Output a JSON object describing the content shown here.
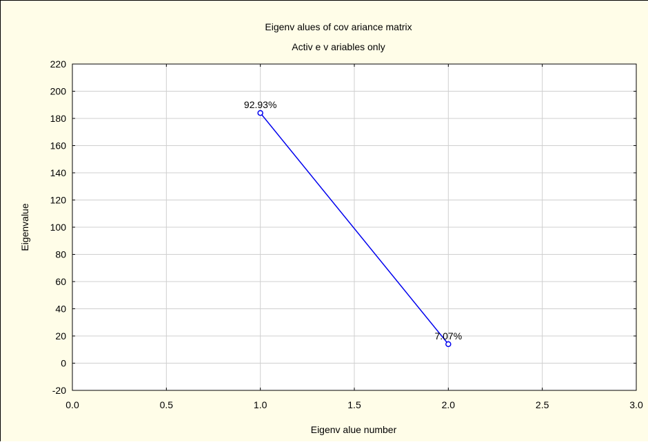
{
  "chart_data": {
    "type": "line",
    "title": "Eigenv alues of cov ariance matrix",
    "subtitle": "Activ e v ariables only",
    "xlabel": "Eigenv alue number",
    "ylabel": "Eigenvalue",
    "xlim": [
      0.0,
      3.0
    ],
    "ylim": [
      -20,
      220
    ],
    "xticks": [
      0.0,
      0.5,
      1.0,
      1.5,
      2.0,
      2.5,
      3.0
    ],
    "xtick_labels": [
      "0.0",
      "0.5",
      "1.0",
      "1.5",
      "2.0",
      "2.5",
      "3.0"
    ],
    "yticks": [
      -20,
      0,
      20,
      40,
      60,
      80,
      100,
      120,
      140,
      160,
      180,
      200,
      220
    ],
    "ytick_labels": [
      "-20",
      "0",
      "20",
      "40",
      "60",
      "80",
      "100",
      "120",
      "140",
      "160",
      "180",
      "200",
      "220"
    ],
    "grid": true,
    "series": [
      {
        "x": [
          1.0,
          2.0
        ],
        "y": [
          184,
          14
        ],
        "labels": [
          "92.93%",
          "7.07%"
        ],
        "color": "#0000ee",
        "marker": "open-circle"
      }
    ]
  },
  "colors": {
    "background": "#fffde8",
    "plot_area": "#ffffff",
    "grid": "#cfcfcf",
    "series": "#0000ee"
  }
}
